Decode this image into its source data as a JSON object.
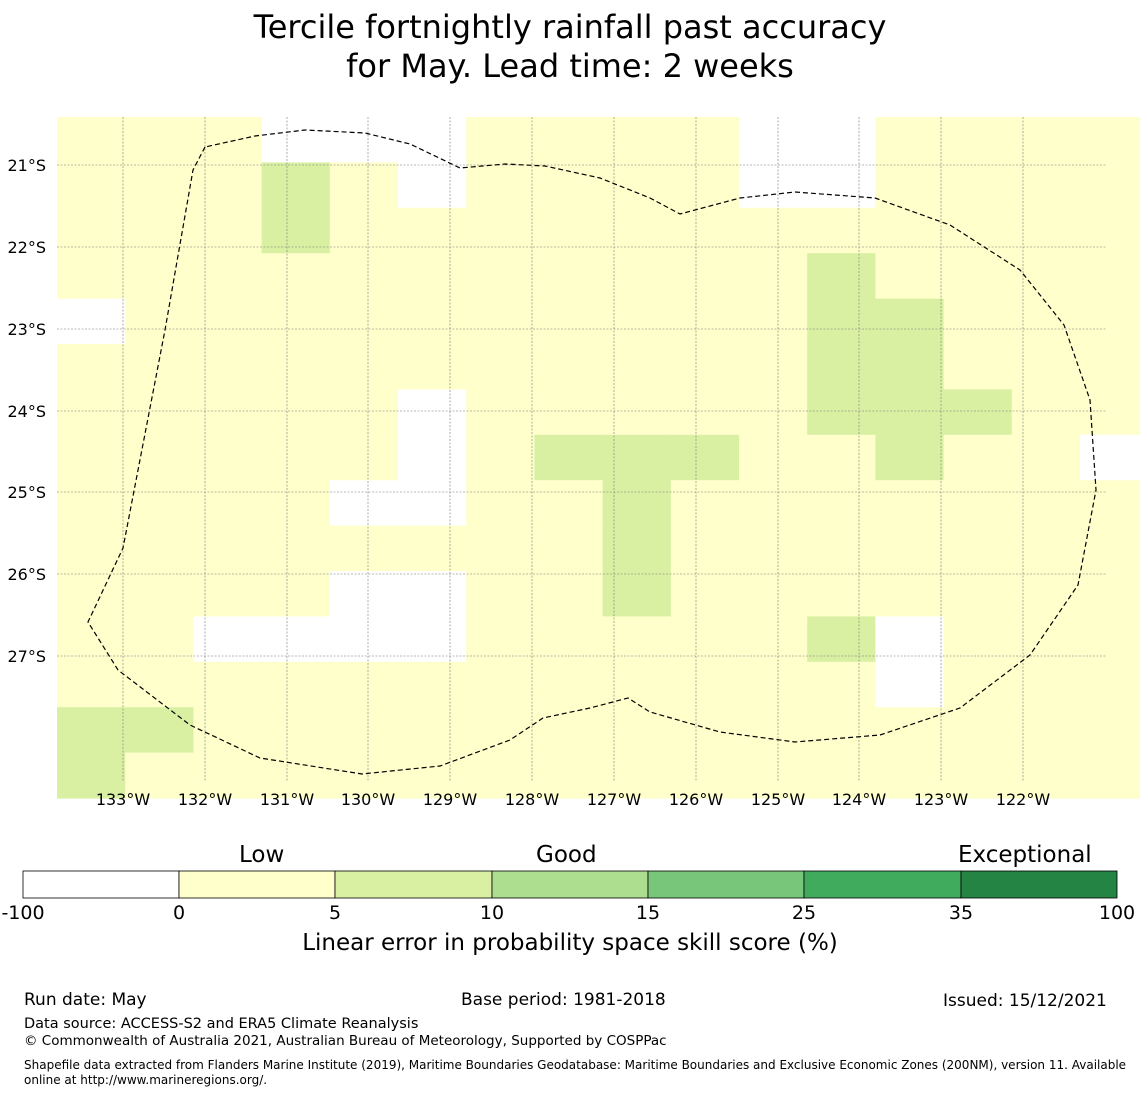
{
  "title": {
    "line1": "Tercile fortnightly rainfall past accuracy",
    "line2": "for May. Lead time: 2 weeks"
  },
  "map": {
    "lat_ticks": [
      "21°S",
      "22°S",
      "23°S",
      "24°S",
      "25°S",
      "26°S",
      "27°S"
    ],
    "lon_ticks": [
      "133°W",
      "132°W",
      "131°W",
      "130°W",
      "129°W",
      "128°W",
      "127°W",
      "126°W",
      "125°W",
      "124°W",
      "123°W",
      "122°W"
    ],
    "eez_outline": "dashed",
    "colors": {
      "low_0_5": "#ffffcc",
      "good_5_10": "#d9f0a3",
      "none": "#ffffff"
    },
    "grid": {
      "rows": 15,
      "cols": 16,
      "legend": "0 = below 0 (white), 1 = 0–5, 2 = 5–10",
      "cells": [
        "1110001111001111",
        "1112101111001111",
        "1112111111111111",
        "1111111111121111",
        "0111111111122111",
        "1111111111122111",
        "1111101111122211",
        "1111101222112110",
        "1111001121111111",
        "1111111121111111",
        "1111001121111111",
        "1100001111120111",
        "1111111111110111",
        "2211111111111111",
        "2111111111111111"
      ]
    }
  },
  "colorbar": {
    "categories": [
      "Low",
      "Good",
      "Exceptional"
    ],
    "boundaries": [
      "-100",
      "0",
      "5",
      "10",
      "15",
      "25",
      "35",
      "100"
    ],
    "colors": [
      "#ffffff",
      "#ffffcc",
      "#d9f0a3",
      "#addd8e",
      "#78c679",
      "#41ab5d",
      "#238443"
    ],
    "label": "Linear error in probability space skill score (%)"
  },
  "footer": {
    "run_date": "Run date: May",
    "base_period": "Base period: 1981-2018",
    "issued": "Issued: 15/12/2021",
    "data_source": "Data source: ACCESS-S2 and ERA5 Climate Reanalysis",
    "copyright": "© Commonwealth of Australia 2021, Australian Bureau of Meteorology, Supported by COSPPac",
    "shapefile": "Shapefile data extracted from Flanders Marine Institute (2019), Maritime Boundaries Geodatabase: Maritime Boundaries and Exclusive Economic Zones (200NM), version 11. Available online at http://www.marineregions.org/."
  }
}
